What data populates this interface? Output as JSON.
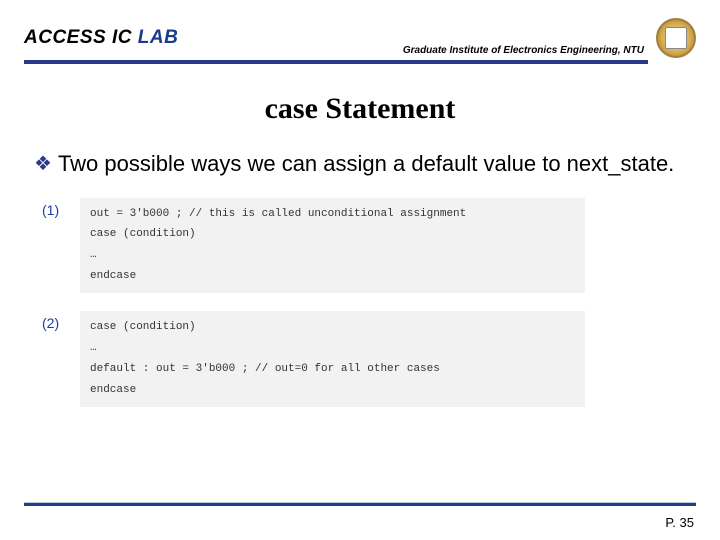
{
  "header": {
    "lab_prefix": "ACCESS IC ",
    "lab_suffix": "LAB",
    "institute": "Graduate Institute of Electronics Engineering, NTU"
  },
  "title": "case Statement",
  "bullet_text": "Two possible ways we can assign a default value to next_state.",
  "code_items": [
    {
      "num": "(1)",
      "lines": [
        "out = 3'b000 ; // this is called unconditional assignment",
        "case (condition)",
        "…",
        "endcase"
      ]
    },
    {
      "num": "(2)",
      "lines": [
        "case (condition)",
        "…",
        "default : out = 3'b000 ; // out=0 for all other cases",
        "endcase"
      ]
    }
  ],
  "page": "P. 35",
  "colors": {
    "accent": "#2a3a8a",
    "code_bg": "#f2f2f2"
  }
}
